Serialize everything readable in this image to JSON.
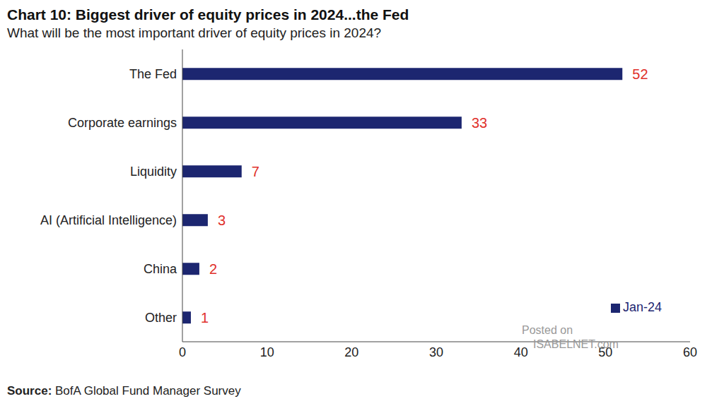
{
  "chart_data": {
    "type": "bar",
    "title": "Chart 10: Biggest driver of equity prices in 2024...the Fed",
    "subtitle": "What will be the most important driver of equity prices in 2024?",
    "categories": [
      "The Fed",
      "Corporate earnings",
      "Liquidity",
      "AI (Artificial Intelligence)",
      "China",
      "Other"
    ],
    "series": [
      {
        "name": "Jan-24",
        "color": "#1c2670",
        "values": [
          52,
          33,
          7,
          3,
          2,
          1
        ]
      }
    ],
    "orientation": "horizontal",
    "data_labels": true,
    "xlim": [
      0,
      60
    ],
    "xticks": [
      0,
      10,
      20,
      30,
      40,
      50,
      60
    ],
    "grid": false,
    "legend": "lower right",
    "source": "Source: BofA Global Fund Manager Survey",
    "watermark": "Posted on ISABELNET.com"
  }
}
